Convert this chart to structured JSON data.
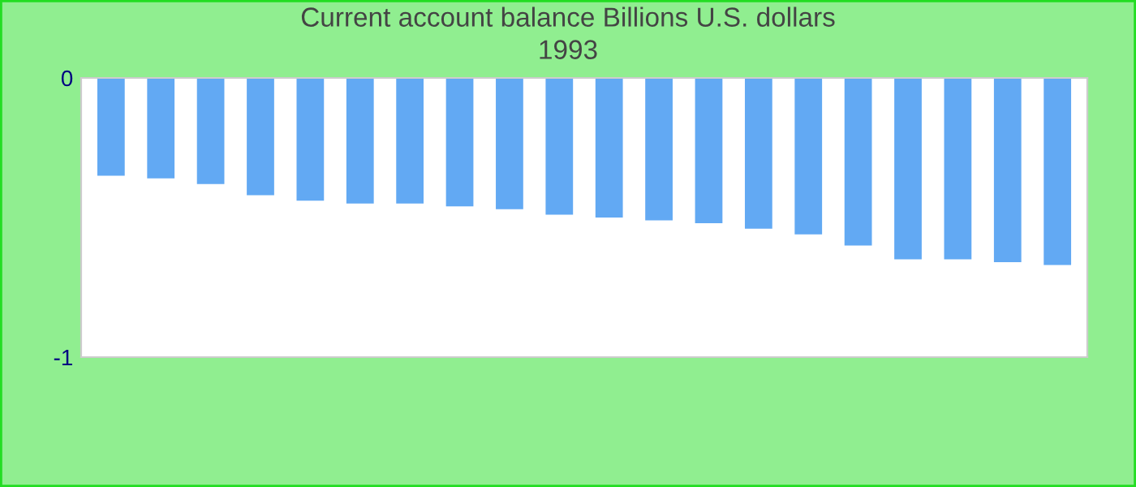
{
  "chart_data": {
    "type": "bar",
    "title": "Current account balance Billions U.S. dollars",
    "subtitle": "1993",
    "categories": [
      null,
      null,
      null,
      null,
      null,
      null,
      null,
      null,
      null,
      null,
      null,
      null,
      null,
      null,
      null,
      null,
      null,
      null,
      null,
      null
    ],
    "values": [
      -0.35,
      -0.36,
      -0.38,
      -0.42,
      -0.44,
      -0.45,
      -0.45,
      -0.46,
      -0.47,
      -0.49,
      -0.5,
      -0.51,
      -0.52,
      -0.54,
      -0.56,
      -0.6,
      -0.65,
      -0.65,
      -0.66,
      -0.67
    ],
    "color": "#62a9f3",
    "ylim": [
      -1,
      0
    ],
    "yticks": [
      -1,
      0
    ],
    "grid": false,
    "legend": false
  }
}
